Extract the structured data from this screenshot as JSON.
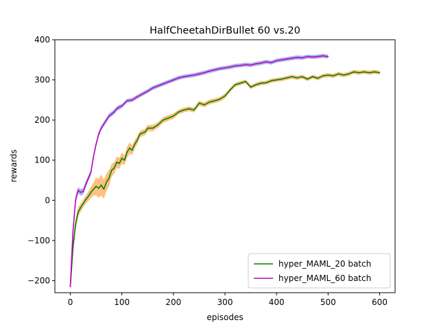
{
  "chart_data": {
    "type": "line",
    "title": "HalfCheetahDirBullet 60 vs.20",
    "xlabel": "episodes",
    "ylabel": "rewards",
    "xlim": [
      -30,
      630
    ],
    "ylim": [
      -230,
      400
    ],
    "x_ticks": [
      "0",
      "100",
      "200",
      "300",
      "400",
      "500",
      "600"
    ],
    "y_ticks": [
      "−200",
      "−100",
      "0",
      "100",
      "200",
      "300",
      "400"
    ],
    "grid": false,
    "legend_position": "lower-right",
    "series": [
      {
        "name": "hyper_MAML_20 batch",
        "color": "#008000",
        "band_color": "#ff8c1a",
        "x": [
          0,
          5,
          10,
          15,
          20,
          25,
          30,
          35,
          40,
          45,
          50,
          55,
          60,
          65,
          70,
          75,
          80,
          85,
          90,
          95,
          100,
          105,
          110,
          115,
          120,
          125,
          130,
          135,
          140,
          145,
          150,
          160,
          170,
          180,
          190,
          200,
          210,
          220,
          230,
          240,
          250,
          260,
          270,
          280,
          290,
          300,
          310,
          320,
          330,
          340,
          350,
          360,
          370,
          380,
          390,
          400,
          410,
          420,
          430,
          440,
          450,
          460,
          470,
          480,
          490,
          500,
          510,
          520,
          530,
          540,
          550,
          560,
          570,
          580,
          590,
          600
        ],
        "values": [
          -215,
          -120,
          -60,
          -30,
          -18,
          -8,
          2,
          10,
          20,
          28,
          35,
          30,
          38,
          28,
          45,
          55,
          75,
          80,
          95,
          92,
          105,
          100,
          120,
          130,
          125,
          140,
          150,
          165,
          168,
          170,
          180,
          180,
          188,
          200,
          205,
          210,
          220,
          225,
          228,
          225,
          242,
          238,
          245,
          248,
          252,
          260,
          275,
          288,
          292,
          296,
          282,
          288,
          292,
          293,
          298,
          300,
          302,
          305,
          308,
          305,
          308,
          302,
          308,
          304,
          310,
          312,
          310,
          315,
          312,
          315,
          320,
          318,
          320,
          318,
          320,
          318
        ],
        "band": [
          12,
          16,
          14,
          12,
          10,
          10,
          10,
          12,
          14,
          16,
          22,
          24,
          26,
          24,
          22,
          20,
          16,
          14,
          14,
          14,
          14,
          12,
          14,
          14,
          12,
          10,
          10,
          8,
          8,
          8,
          8,
          8,
          7,
          7,
          7,
          7,
          6,
          6,
          6,
          6,
          6,
          6,
          6,
          6,
          6,
          6,
          5,
          5,
          5,
          5,
          5,
          5,
          5,
          5,
          5,
          5,
          5,
          5,
          5,
          5,
          5,
          5,
          5,
          5,
          5,
          5,
          5,
          5,
          5,
          5,
          5,
          5,
          5,
          5,
          5,
          5
        ]
      },
      {
        "name": "hyper_MAML_60 batch",
        "color": "#bf00bf",
        "band_color": "#5a7bd8",
        "x": [
          0,
          5,
          10,
          15,
          20,
          25,
          30,
          35,
          40,
          45,
          50,
          55,
          60,
          65,
          70,
          75,
          80,
          85,
          90,
          95,
          100,
          110,
          120,
          130,
          140,
          150,
          160,
          170,
          180,
          190,
          200,
          210,
          220,
          230,
          240,
          250,
          260,
          270,
          280,
          290,
          300,
          310,
          320,
          330,
          340,
          350,
          360,
          370,
          380,
          390,
          400,
          410,
          420,
          430,
          440,
          450,
          460,
          470,
          480,
          490,
          500
        ],
        "values": [
          -215,
          -80,
          0,
          25,
          20,
          22,
          40,
          55,
          70,
          110,
          140,
          165,
          180,
          190,
          200,
          210,
          215,
          220,
          228,
          232,
          235,
          248,
          250,
          258,
          265,
          272,
          280,
          285,
          290,
          295,
          300,
          305,
          308,
          310,
          312,
          315,
          318,
          322,
          325,
          328,
          330,
          332,
          335,
          336,
          338,
          337,
          340,
          342,
          345,
          343,
          348,
          350,
          352,
          354,
          356,
          355,
          358,
          357,
          358,
          360,
          358
        ],
        "band": [
          14,
          14,
          10,
          8,
          8,
          8,
          8,
          7,
          7,
          7,
          6,
          6,
          6,
          6,
          6,
          6,
          6,
          6,
          6,
          6,
          5,
          5,
          5,
          5,
          5,
          5,
          5,
          5,
          5,
          5,
          5,
          5,
          5,
          5,
          5,
          5,
          5,
          5,
          5,
          5,
          5,
          5,
          5,
          5,
          5,
          5,
          5,
          5,
          5,
          5,
          5,
          5,
          5,
          5,
          5,
          5,
          5,
          5,
          5,
          5,
          5
        ]
      }
    ]
  }
}
